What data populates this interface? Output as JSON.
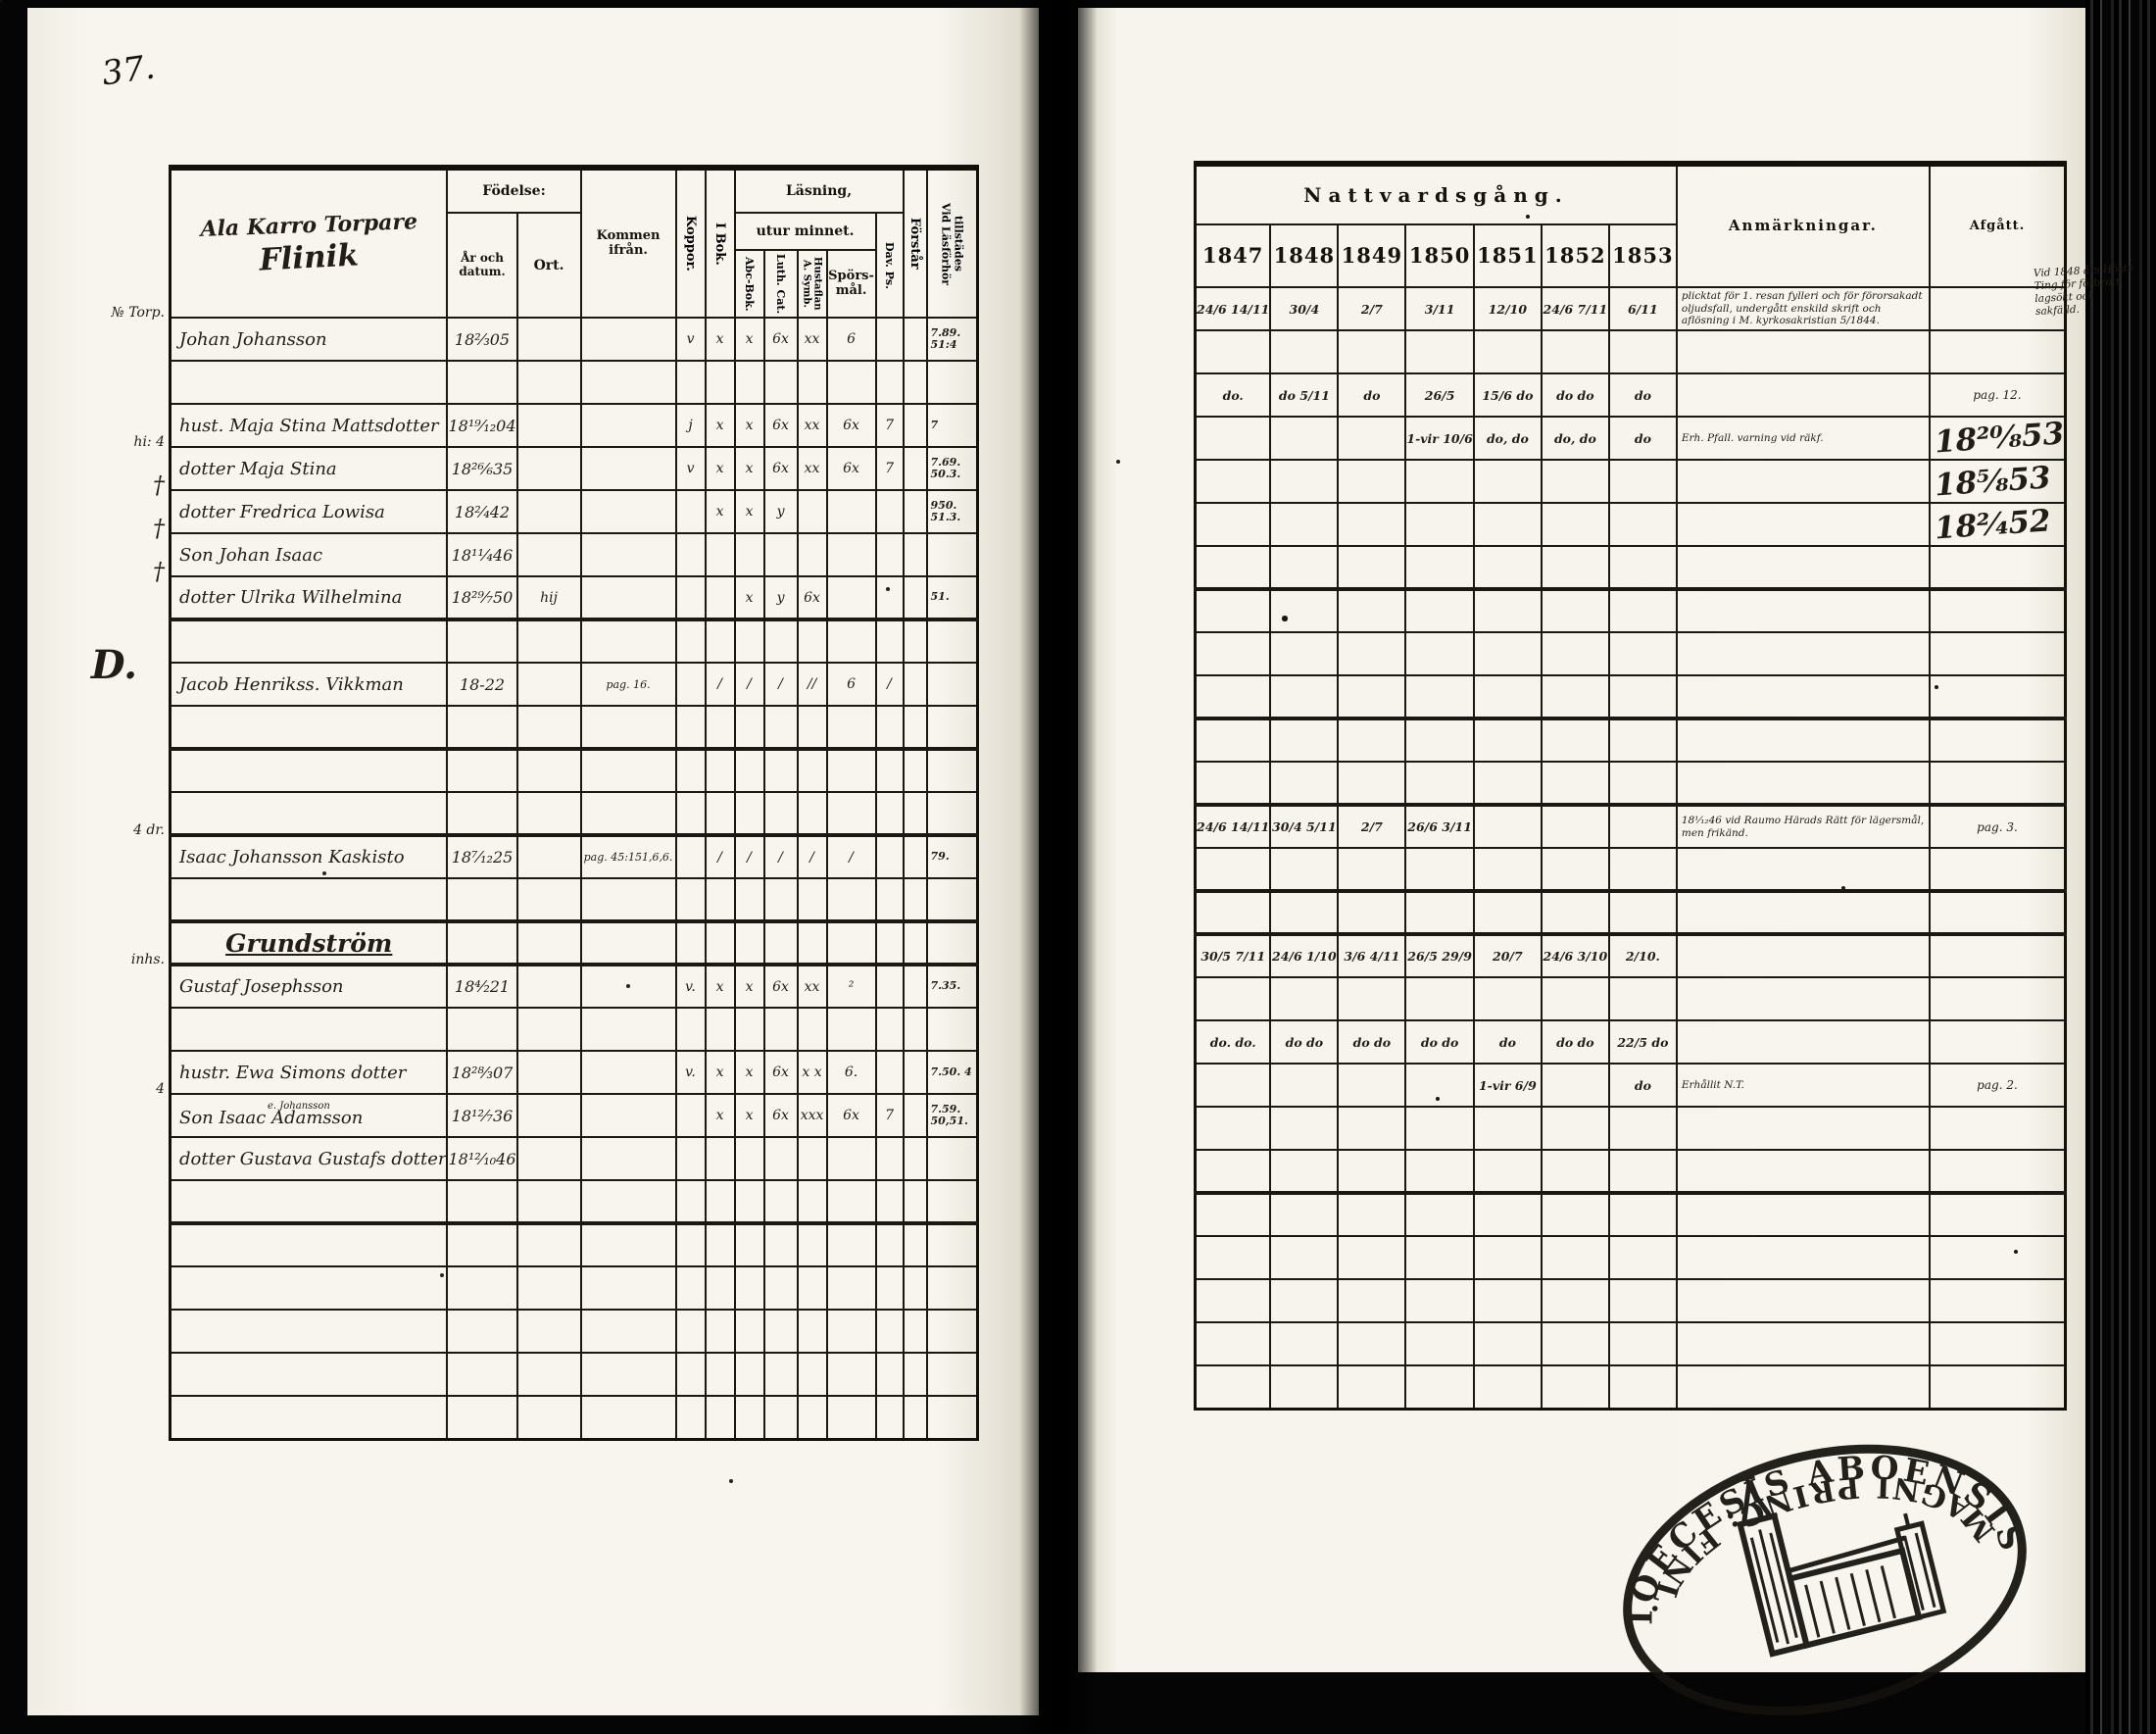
{
  "page_number": "37.",
  "left_table": {
    "title_line1": "Ala Karro Torpare",
    "title_line2": "Flinik",
    "headers": {
      "fodelse": "Födelse:",
      "ar": "År och datum.",
      "ort": "Ort.",
      "kommen": "Kommen ifrån.",
      "koppor": "Koppor.",
      "ibok": "I Bok.",
      "lasning": "Läsning,",
      "utur": "utur minnet.",
      "abc": "Abc-Bok.",
      "luth": "Luth. Cat.",
      "symb": "A. Symb.\nHustaflan",
      "spors": "Spörs-\nmål.",
      "dav": "Dav. Ps.",
      "forstar": "Förstår",
      "vlt": "Vid Läsförhör\ntillstädes"
    }
  },
  "right_table": {
    "title": "Nattvardsgång.",
    "years": [
      "1847",
      "1848",
      "1849",
      "1850",
      "1851",
      "1852",
      "1853"
    ],
    "anm": "Anmärkningar.",
    "afgatt": "Afgått."
  },
  "margin_note_right": "Vid 1848 års Höste\nTing för förbrott\nlagsökt och\nsakfälld.",
  "stamp": {
    "text_top": "DIOECESIS ABOENSIS.",
    "text_bottom": "MAGNI PRINC: FINL."
  },
  "rows": [
    {
      "m": "№ Torp.",
      "n": "Johan Johansson",
      "b": "18²⁄₃05",
      "kp": "v",
      "ib": "x",
      "ab": "x",
      "lu": "6x",
      "sy": "xx",
      "sp": "6",
      "vlt": "7.89.\n51:4",
      "y": [
        "24/6 14/11",
        "30/4",
        "2/7",
        "3/11",
        "12/10",
        "24/6 7/11",
        "6/11"
      ],
      "anm": "plicktat för 1. resan fylleri och för förorsakadt oljudsfall, undergått enskild skrift och aflösning i M. kyrkosakristian 5/1844."
    },
    {},
    {
      "n": "hust. Maja Stina Mattsdotter",
      "b": "18¹⁹⁄₁₂04",
      "kp": "j",
      "ib": "x",
      "ab": "x",
      "lu": "6x",
      "sy": "xx",
      "sp": "6x",
      "dv": "7",
      "vlt": "7",
      "y": [
        "do.",
        "do 5/11",
        "do",
        "26/5",
        "15/6 do",
        "do do",
        "do"
      ],
      "af": "pag. 12."
    },
    {
      "m": "hi: 4",
      "n": "dotter Maja Stina",
      "b": "18²⁶⁄₆35",
      "kp": "v",
      "ib": "x",
      "ab": "x",
      "lu": "6x",
      "sy": "xx",
      "sp": "6x",
      "dv": "7",
      "vlt": "7.69.\n50.3.",
      "y": [
        "",
        "",
        "",
        "1-vir 10/6",
        "do, do",
        "do, do",
        "do"
      ],
      "anm": "Erh. Pfall. varning vid räkf.",
      "af": "18²⁰⁄₈53",
      "afbig": true
    },
    {
      "m": "†",
      "n": "dotter Fredrica Lowisa",
      "b": "18²⁄₄42",
      "ib": "x",
      "ab": "x",
      "lu": "y",
      "vlt": "950.\n51.3.",
      "af": "18⁵⁄₈53",
      "afbig": true
    },
    {
      "m": "†",
      "n": "Son Johan Isaac",
      "b": "18¹¹⁄₄46",
      "af": "18²⁄₄52",
      "afbig": true
    },
    {
      "m": "†",
      "n": "dotter Ulrika Wilhelmina",
      "b": "18²⁹⁄₇50",
      "ort": "hij",
      "ab": "x",
      "lu": "y",
      "sy": "6x",
      "vlt": "51.",
      "thick": true
    },
    {},
    {
      "m": "D.",
      "n": "Jacob Henrikss. Vikkman",
      "b": "18-22",
      "k": "pag. 16.",
      "ib": "/",
      "ab": "/",
      "lu": "/",
      "sy": "//",
      "sp": "6",
      "dv": "/"
    },
    {
      "thick": true
    },
    {},
    {
      "thick": true
    },
    {
      "m": "4 dr.",
      "n": "Isaac Johansson Kaskisto",
      "b": "18⁷⁄₁₂25",
      "k": "pag. 45:151,6,6.",
      "ib": "/",
      "ab": "/",
      "lu": "/",
      "sy": "/",
      "sp": "/",
      "vlt": "79.",
      "y": [
        "24/6 14/11",
        "30/4 5/11",
        "2/7",
        "26/6 3/11",
        "",
        "",
        ""
      ],
      "anm": "18¹⁄₁₂46 vid Raumo Härads Rätt för lägersmål, men frikänd.",
      "af": "pag. 3."
    },
    {
      "thick": true
    },
    {
      "heading": "Grundström",
      "thick": true
    },
    {
      "m": "inhs.",
      "n": "Gustaf Josephsson",
      "b": "18⁴⁄₂21",
      "kp": "v.",
      "ib": "x",
      "ab": "x",
      "lu": "6x",
      "sy": "xx",
      "sp": "²",
      "vlt": "7.35.",
      "y": [
        "30/5 7/11",
        "24/6 1/10",
        "3/6 4/11",
        "26/5 29/9",
        "20/7",
        "24/6 3/10",
        "2/10."
      ]
    },
    {},
    {
      "n": "hustr. Ewa Simons dotter",
      "b": "18²⁸⁄₃07",
      "kp": "v.",
      "ib": "x",
      "ab": "x",
      "lu": "6x",
      "sy": "x x",
      "sp": "6.",
      "vlt": "7.50. 4",
      "y": [
        "do. do.",
        "do do",
        "do do",
        "do do",
        "do",
        "do do",
        "22/5 do"
      ]
    },
    {
      "m": "4",
      "n": "Son Isaac Adamsson",
      "note": "e. Johansson",
      "b": "18¹²⁄₇36",
      "ib": "x",
      "ab": "x",
      "lu": "6x",
      "sy": "xxx",
      "sp": "6x",
      "dv": "7",
      "vlt": "7.59. 50,51.",
      "y": [
        "",
        "",
        "",
        "",
        "1-vir 6/9",
        "",
        "do"
      ],
      "anm": "Erhållit N.T.",
      "af": "pag. 2."
    },
    {
      "n": "dotter Gustava Gustafs dotter",
      "b": "18¹²⁄₁₀46"
    },
    {
      "thick": true
    },
    {},
    {},
    {},
    {},
    {}
  ]
}
